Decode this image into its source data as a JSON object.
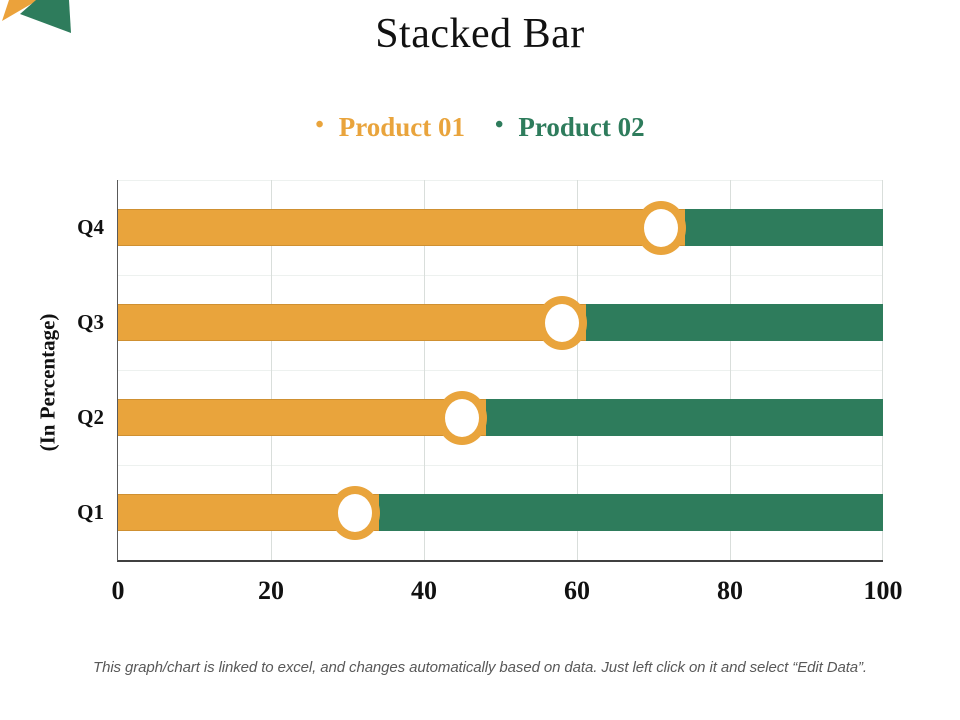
{
  "slide": {
    "title": "Stacked Bar",
    "footer": "This graph/chart is linked to excel, and changes automatically based on data. Just left click on it and select “Edit Data”."
  },
  "colors": {
    "product1": "#E9A43C",
    "product2": "#2E7C5C",
    "marker_ring": "#E9A43C",
    "marker_fill": "#FFFFFF",
    "axis_line": "#404040",
    "grid_vertical": "#D9DEDB",
    "grid_horizontal": "#EDF1EF",
    "title_text": "#111111",
    "footer_text": "#595959",
    "corner_orange": "#EBA23B",
    "corner_green": "#2E7C5C"
  },
  "chart_data": {
    "type": "bar",
    "orientation": "horizontal",
    "stacked": true,
    "title": "Stacked Bar",
    "categories": [
      "Q1",
      "Q2",
      "Q3",
      "Q4"
    ],
    "series": [
      {
        "name": "Product 01",
        "values": [
          31,
          45,
          58,
          71
        ],
        "color": "#E9A43C"
      },
      {
        "name": "Product 02",
        "values": [
          69,
          55,
          42,
          29
        ],
        "color": "#2E7C5C"
      }
    ],
    "xlabel": "",
    "ylabel": "(In Percentage)",
    "x_ticks": [
      0,
      20,
      40,
      60,
      80,
      100
    ],
    "xlim": [
      0,
      100
    ],
    "grid": true,
    "legend_position": "top",
    "marker": "orange-ring-at-series-boundary",
    "category_display_order_top_to_bottom": [
      "Q4",
      "Q3",
      "Q2",
      "Q1"
    ]
  }
}
